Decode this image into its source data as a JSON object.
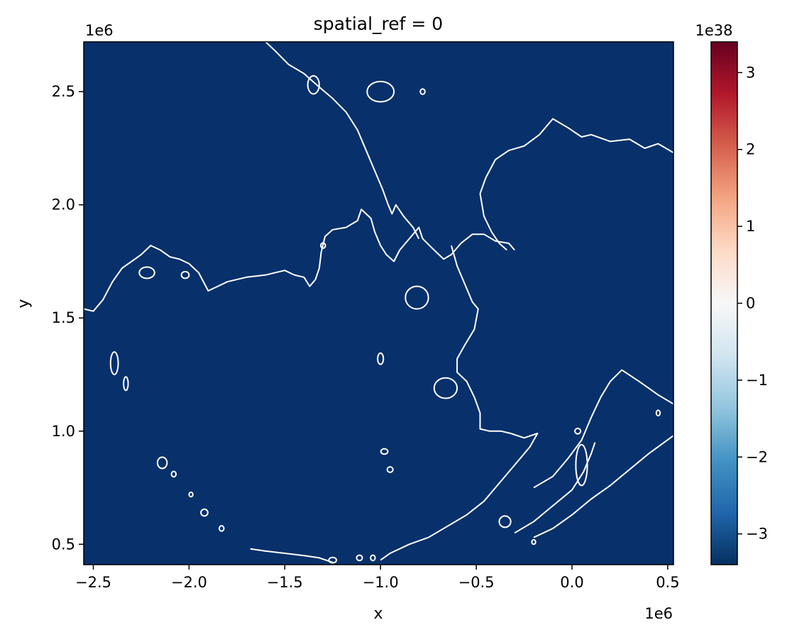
{
  "chart_data": {
    "type": "heatmap",
    "title": "spatial_ref = 0",
    "xlabel": "x",
    "ylabel": "y",
    "x_offset_label": "1e6",
    "y_offset_label": "1e6",
    "xlim": [
      -2.55,
      0.53
    ],
    "ylim": [
      0.41,
      2.72
    ],
    "x_ticks": [
      -2.5,
      -2.0,
      -1.5,
      -1.0,
      -0.5,
      0.0,
      0.5
    ],
    "x_tick_labels": [
      "−2.5",
      "−2.0",
      "−1.5",
      "−1.0",
      "−0.5",
      "0.0",
      "0.5"
    ],
    "y_ticks": [
      0.5,
      1.0,
      1.5,
      2.0,
      2.5
    ],
    "y_tick_labels": [
      "0.5",
      "1.0",
      "1.5",
      "2.0",
      "2.5"
    ],
    "colorbar": {
      "colormap": "RdBu_r",
      "offset_label": "1e38",
      "vmin": -3.4,
      "vmax": 3.4,
      "ticks": [
        3,
        2,
        1,
        0,
        -1,
        -2,
        -3
      ],
      "tick_labels": [
        "3",
        "2",
        "1",
        "0",
        "−1",
        "−2",
        "−3"
      ]
    },
    "grid": false,
    "fill_color": "#08306b",
    "outline_color": "#ffffff",
    "coastline_paths": [
      [
        [
          -2.55,
          1.54
        ],
        [
          -2.5,
          1.53
        ],
        [
          -2.45,
          1.58
        ],
        [
          -2.4,
          1.66
        ],
        [
          -2.35,
          1.72
        ],
        [
          -2.3,
          1.75
        ],
        [
          -2.25,
          1.78
        ],
        [
          -2.2,
          1.82
        ],
        [
          -2.15,
          1.8
        ],
        [
          -2.1,
          1.77
        ],
        [
          -2.05,
          1.76
        ],
        [
          -2.0,
          1.74
        ],
        [
          -1.95,
          1.7
        ],
        [
          -1.9,
          1.62
        ],
        [
          -1.85,
          1.64
        ],
        [
          -1.8,
          1.66
        ],
        [
          -1.7,
          1.68
        ],
        [
          -1.6,
          1.69
        ],
        [
          -1.5,
          1.71
        ],
        [
          -1.45,
          1.69
        ],
        [
          -1.4,
          1.68
        ],
        [
          -1.37,
          1.64
        ],
        [
          -1.34,
          1.67
        ],
        [
          -1.32,
          1.72
        ],
        [
          -1.31,
          1.79
        ],
        [
          -1.29,
          1.86
        ],
        [
          -1.25,
          1.89
        ],
        [
          -1.18,
          1.9
        ],
        [
          -1.12,
          1.93
        ],
        [
          -1.1,
          1.98
        ],
        [
          -1.05,
          1.94
        ],
        [
          -1.03,
          1.88
        ],
        [
          -1.0,
          1.82
        ],
        [
          -0.97,
          1.78
        ],
        [
          -0.93,
          1.75
        ],
        [
          -0.9,
          1.8
        ],
        [
          -0.85,
          1.85
        ],
        [
          -0.8,
          1.9
        ],
        [
          -0.78,
          1.85
        ],
        [
          -0.72,
          1.8
        ],
        [
          -0.67,
          1.76
        ],
        [
          -0.63,
          1.78
        ],
        [
          -0.58,
          1.83
        ],
        [
          -0.52,
          1.87
        ],
        [
          -0.46,
          1.87
        ],
        [
          -0.4,
          1.84
        ],
        [
          -0.33,
          1.83
        ],
        [
          -0.3,
          1.8
        ]
      ],
      [
        [
          -1.6,
          2.72
        ],
        [
          -1.55,
          2.68
        ],
        [
          -1.48,
          2.62
        ],
        [
          -1.4,
          2.58
        ],
        [
          -1.32,
          2.52
        ],
        [
          -1.25,
          2.47
        ],
        [
          -1.18,
          2.41
        ],
        [
          -1.12,
          2.33
        ],
        [
          -1.07,
          2.23
        ],
        [
          -1.03,
          2.15
        ],
        [
          -0.99,
          2.07
        ],
        [
          -0.96,
          2.0
        ],
        [
          -0.94,
          1.96
        ],
        [
          -0.92,
          2.0
        ],
        [
          -0.88,
          1.95
        ],
        [
          -0.83,
          1.9
        ],
        [
          -0.8,
          1.85
        ]
      ],
      [
        [
          -0.63,
          1.82
        ],
        [
          -0.6,
          1.73
        ],
        [
          -0.56,
          1.65
        ],
        [
          -0.52,
          1.57
        ],
        [
          -0.49,
          1.54
        ],
        [
          -0.51,
          1.45
        ],
        [
          -0.56,
          1.38
        ],
        [
          -0.6,
          1.32
        ],
        [
          -0.6,
          1.26
        ],
        [
          -0.55,
          1.22
        ],
        [
          -0.51,
          1.15
        ],
        [
          -0.48,
          1.08
        ],
        [
          -0.48,
          1.01
        ],
        [
          -0.43,
          1.0
        ],
        [
          -0.37,
          1.0
        ],
        [
          -0.32,
          0.99
        ],
        [
          -0.25,
          0.97
        ],
        [
          -0.18,
          0.99
        ],
        [
          -0.22,
          0.93
        ],
        [
          -0.3,
          0.85
        ],
        [
          -0.38,
          0.77
        ],
        [
          -0.46,
          0.69
        ],
        [
          -0.55,
          0.63
        ],
        [
          -0.65,
          0.58
        ],
        [
          -0.75,
          0.53
        ],
        [
          -0.85,
          0.5
        ],
        [
          -0.95,
          0.46
        ],
        [
          -1.0,
          0.43
        ]
      ],
      [
        [
          -0.48,
          2.05
        ],
        [
          -0.45,
          2.12
        ],
        [
          -0.4,
          2.2
        ],
        [
          -0.33,
          2.24
        ],
        [
          -0.25,
          2.26
        ],
        [
          -0.17,
          2.31
        ],
        [
          -0.1,
          2.38
        ],
        [
          -0.02,
          2.34
        ],
        [
          0.05,
          2.3
        ],
        [
          0.1,
          2.31
        ],
        [
          0.2,
          2.28
        ],
        [
          0.3,
          2.29
        ],
        [
          0.38,
          2.25
        ],
        [
          0.45,
          2.27
        ],
        [
          0.53,
          2.23
        ]
      ],
      [
        [
          -0.48,
          2.05
        ],
        [
          -0.46,
          1.95
        ],
        [
          -0.42,
          1.88
        ],
        [
          -0.38,
          1.83
        ],
        [
          -0.34,
          1.8
        ]
      ],
      [
        [
          -0.2,
          0.75
        ],
        [
          -0.1,
          0.8
        ],
        [
          -0.02,
          0.88
        ],
        [
          0.05,
          0.96
        ],
        [
          0.1,
          1.06
        ],
        [
          0.15,
          1.15
        ],
        [
          0.2,
          1.22
        ],
        [
          0.26,
          1.27
        ],
        [
          0.35,
          1.22
        ],
        [
          0.45,
          1.16
        ],
        [
          0.53,
          1.12
        ]
      ],
      [
        [
          -0.3,
          0.55
        ],
        [
          -0.2,
          0.6
        ],
        [
          -0.1,
          0.67
        ],
        [
          0.0,
          0.74
        ],
        [
          0.06,
          0.82
        ],
        [
          0.1,
          0.9
        ],
        [
          0.12,
          0.95
        ]
      ],
      [
        [
          -0.2,
          0.53
        ],
        [
          -0.1,
          0.57
        ],
        [
          0.0,
          0.63
        ],
        [
          0.1,
          0.7
        ],
        [
          0.2,
          0.76
        ],
        [
          0.3,
          0.83
        ],
        [
          0.4,
          0.9
        ],
        [
          0.53,
          0.98
        ]
      ],
      [
        [
          -1.68,
          0.48
        ],
        [
          -1.6,
          0.47
        ],
        [
          -1.5,
          0.46
        ],
        [
          -1.4,
          0.45
        ],
        [
          -1.32,
          0.44
        ],
        [
          -1.25,
          0.42
        ]
      ]
    ],
    "island_outlines": [
      {
        "x": -1.0,
        "y": 2.5,
        "rx": 0.07,
        "ry": 0.045
      },
      {
        "x": -1.35,
        "y": 2.53,
        "rx": 0.03,
        "ry": 0.04
      },
      {
        "x": -0.78,
        "y": 2.5,
        "rx": 0.012,
        "ry": 0.012
      },
      {
        "x": -0.81,
        "y": 1.59,
        "rx": 0.06,
        "ry": 0.05
      },
      {
        "x": -0.66,
        "y": 1.19,
        "rx": 0.06,
        "ry": 0.045
      },
      {
        "x": -1.0,
        "y": 1.32,
        "rx": 0.015,
        "ry": 0.025
      },
      {
        "x": -2.39,
        "y": 1.3,
        "rx": 0.02,
        "ry": 0.05
      },
      {
        "x": -2.33,
        "y": 1.21,
        "rx": 0.012,
        "ry": 0.03
      },
      {
        "x": -2.14,
        "y": 0.86,
        "rx": 0.025,
        "ry": 0.025
      },
      {
        "x": -2.08,
        "y": 0.81,
        "rx": 0.012,
        "ry": 0.012
      },
      {
        "x": -1.99,
        "y": 0.72,
        "rx": 0.01,
        "ry": 0.01
      },
      {
        "x": -1.92,
        "y": 0.64,
        "rx": 0.018,
        "ry": 0.015
      },
      {
        "x": -1.83,
        "y": 0.57,
        "rx": 0.012,
        "ry": 0.012
      },
      {
        "x": -0.98,
        "y": 0.91,
        "rx": 0.018,
        "ry": 0.012
      },
      {
        "x": -0.95,
        "y": 0.83,
        "rx": 0.015,
        "ry": 0.012
      },
      {
        "x": -1.3,
        "y": 1.82,
        "rx": 0.012,
        "ry": 0.012
      },
      {
        "x": -2.02,
        "y": 1.69,
        "rx": 0.02,
        "ry": 0.015
      },
      {
        "x": -2.22,
        "y": 1.7,
        "rx": 0.04,
        "ry": 0.025
      },
      {
        "x": 0.03,
        "y": 1.0,
        "rx": 0.015,
        "ry": 0.012
      },
      {
        "x": 0.45,
        "y": 1.08,
        "rx": 0.01,
        "ry": 0.012
      },
      {
        "x": 0.05,
        "y": 0.85,
        "rx": 0.03,
        "ry": 0.09
      },
      {
        "x": -0.35,
        "y": 0.6,
        "rx": 0.03,
        "ry": 0.025
      },
      {
        "x": -0.2,
        "y": 0.51,
        "rx": 0.01,
        "ry": 0.01
      },
      {
        "x": -1.25,
        "y": 0.43,
        "rx": 0.02,
        "ry": 0.012
      },
      {
        "x": -1.11,
        "y": 0.44,
        "rx": 0.015,
        "ry": 0.012
      },
      {
        "x": -1.04,
        "y": 0.44,
        "rx": 0.012,
        "ry": 0.012
      }
    ]
  }
}
